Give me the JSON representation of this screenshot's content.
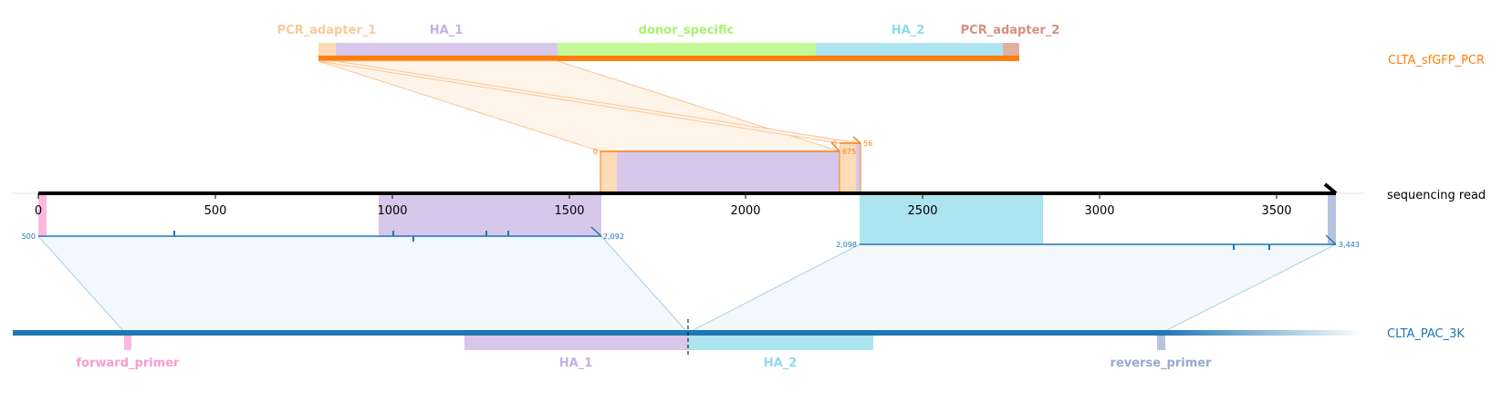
{
  "colors": {
    "pcr_track": "#ff7f0e",
    "pac_track": "#1f77b4",
    "read_axis": "#000000",
    "pcr_adapter_1": "#fddbb6",
    "ha_1": "#d7c7ea",
    "donor_specific": "#c2f994",
    "ha_2": "#ace5f0",
    "pcr_adapter_2": "#e2b0a1",
    "forward_primer": "#fbbadd",
    "reverse_primer": "#b6c3de",
    "pcr_adapter_1_label": "#f9ca99",
    "ha_1_label": "#c5b0e0",
    "donor_specific_label": "#a9f26e",
    "ha_2_label": "#8fdbeb",
    "pcr_adapter_2_label": "#d99080",
    "forward_primer_label": "#f89ccf",
    "reverse_primer_label": "#97a9cf"
  },
  "tracks": {
    "top": {
      "name": "CLTA_sfGFP_PCR"
    },
    "read": {
      "name": "sequencing read"
    },
    "bottom": {
      "name": "CLTA_PAC_3K"
    }
  },
  "top_features": [
    {
      "key": "pcr_adapter_1",
      "label": "PCR_adapter_1"
    },
    {
      "key": "ha_1",
      "label": "HA_1"
    },
    {
      "key": "donor_specific",
      "label": "donor_specific"
    },
    {
      "key": "ha_2",
      "label": "HA_2"
    },
    {
      "key": "pcr_adapter_2",
      "label": "PCR_adapter_2"
    }
  ],
  "bottom_features": [
    {
      "key": "forward_primer",
      "label": "forward_primer"
    },
    {
      "key": "ha_1",
      "label": "HA_1"
    },
    {
      "key": "ha_2",
      "label": "HA_2"
    },
    {
      "key": "reverse_primer",
      "label": "reverse_primer"
    }
  ],
  "read_axis": {
    "ticks": [
      "0",
      "500",
      "1000",
      "1500",
      "2000",
      "2500",
      "3000",
      "3500"
    ]
  },
  "alignments": {
    "pcr_1": {
      "start": "0",
      "end": "675"
    },
    "pcr_2": {
      "start": "0",
      "end": "56"
    },
    "pac_1": {
      "start": "500",
      "end": "2,092"
    },
    "pac_2": {
      "start": "2,098",
      "end": "3,443"
    }
  }
}
